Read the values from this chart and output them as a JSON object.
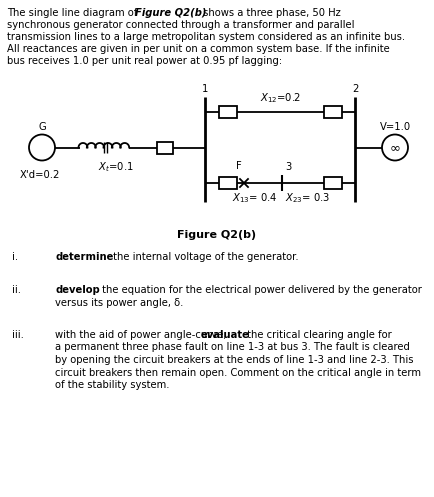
{
  "bg_color": "#ffffff",
  "text_color": "#000000",
  "fig_caption": "Figure Q2(b)",
  "qi_num": "i.",
  "qi_bold": "determine",
  "qi_rest": " the internal voltage of the generator.",
  "qii_num": "ii.",
  "qii_bold": "develop",
  "qii_rest1": " the equation for the electrical power delivered by the generator",
  "qii_rest2": "versus its power angle, δ.",
  "qiii_num": "iii.",
  "qiii_intro": "with the aid of power angle-curve, ",
  "qiii_bold": "evaluate",
  "qiii_rest1": " the critical clearing angle for",
  "qiii_rest2": "a permanent three phase fault on line 1-3 at bus 3. The fault is cleared",
  "qiii_rest3": "by opening the circuit breakers at the ends of line 1-3 and line 2-3. This",
  "qiii_rest4": "circuit breakers then remain open. Comment on the critical angle in term",
  "qiii_rest5": "of the stability system.",
  "para_line1_pre": "The single line diagram of ",
  "para_line1_bold": "Figure Q2(b)",
  "para_line1_post": " shows a three phase, 50 Hz",
  "para_line2": "synchronous generator connected through a transformer and parallel",
  "para_line3": "transmission lines to a large metropolitan system considered as an infinite bus.",
  "para_line4": "All reactances are given in per unit on a common system base. If the infinite",
  "para_line5": "bus receives 1.0 per unit real power at 0.95 pf lagging:"
}
